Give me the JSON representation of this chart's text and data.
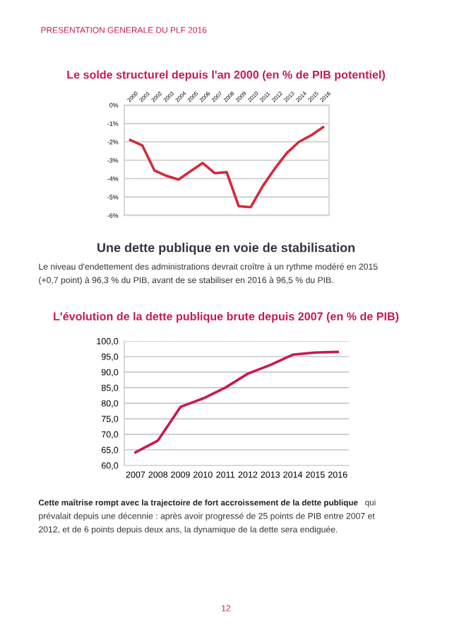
{
  "chart_data": [
    {
      "type": "line",
      "title": "Le solde structurel depuis l'an 2000 (en % de PIB potentiel)",
      "categories": [
        "2000",
        "2001",
        "2002",
        "2003",
        "2004",
        "2005",
        "2006",
        "2007",
        "2008",
        "2009",
        "2010",
        "2011",
        "2012",
        "2013",
        "2014",
        "2015",
        "2016"
      ],
      "series": [
        {
          "color": "#d42a3a",
          "values": [
            -1.9,
            -2.2,
            -3.55,
            -3.85,
            -4.05,
            -3.6,
            -3.15,
            -3.7,
            -3.65,
            -5.5,
            -5.55,
            -4.4,
            -3.45,
            -2.6,
            -2.0,
            -1.65,
            -1.2
          ]
        }
      ],
      "ylim": [
        -6,
        0
      ],
      "yticks": [
        {
          "value": -6,
          "label": "-6%"
        },
        {
          "value": -5,
          "label": "-5%"
        },
        {
          "value": -4,
          "label": "-4%"
        },
        {
          "value": -3,
          "label": "-3%"
        },
        {
          "value": -2,
          "label": "-2%"
        },
        {
          "value": -1,
          "label": "-1%"
        },
        {
          "value": 0,
          "label": "0%"
        }
      ],
      "grid": "y",
      "marker": "none",
      "line_style": "solid",
      "annotations": [
        "PRESENTATION GENERALE DU PLF 2016"
      ]
    },
    {
      "type": "line",
      "title": "L'évolution de la dette publique brute depuis 2007 (en % de PIB)",
      "categories": [
        "2007",
        "2008",
        "2009",
        "2010",
        "2011",
        "2012",
        "2013",
        "2014",
        "2015",
        "2016"
      ],
      "series": [
        {
          "color": "#c8185a",
          "values": [
            64.2,
            68.0,
            78.8,
            81.5,
            85.0,
            89.5,
            92.3,
            95.6,
            96.3,
            96.5
          ]
        }
      ],
      "ylim": [
        60,
        100
      ],
      "yticks": [
        {
          "value": 60,
          "label": "60,0"
        },
        {
          "value": 65,
          "label": "65,0"
        },
        {
          "value": 70,
          "label": "70,0"
        },
        {
          "value": 75,
          "label": "75,0"
        },
        {
          "value": 80,
          "label": "80,0"
        },
        {
          "value": 85,
          "label": "85,0"
        },
        {
          "value": 90,
          "label": "90,0"
        },
        {
          "value": 95,
          "label": "95,0"
        },
        {
          "value": 100,
          "label": "100,0"
        }
      ],
      "grid": "y",
      "marker": "none",
      "line_style": "solid",
      "annotations": [
        "Une dette publique en voie de stabilisation",
        "Le niveau d'endettement des administrations devrait croître à un rythme modéré en 2015",
        "(+0,7 point) à 96,3 % du PIB, avant de se stabiliser en 2016 à 96,5 % du PIB.",
        "Cette maîtrise rompt avec la trajectoire de fort accroissement de la dette publique",
        "qui",
        "prévalait depuis une décennie : après avoir progressé de 25 points de PIB entre 2007 et",
        "2012, et de 6 points depuis deux ans, la dynamique de la dette sera endiguée.",
        "12"
      ]
    }
  ]
}
